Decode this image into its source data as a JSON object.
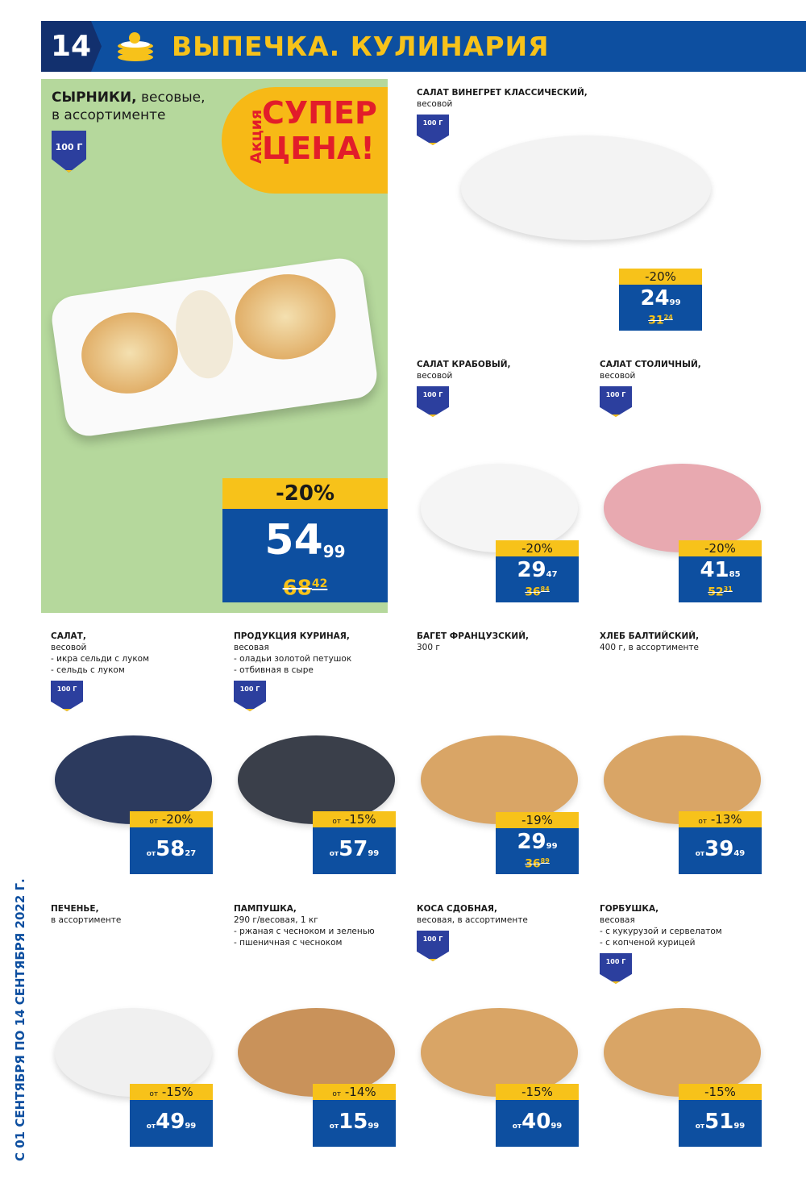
{
  "header": {
    "page_number": "14",
    "title": "ВЫПЕЧКА. КУЛИНАРИЯ",
    "icon": "pancake-stack-icon"
  },
  "colors": {
    "brand_blue": "#0d4fa0",
    "accent_yellow": "#f7c21a",
    "promo_red": "#e21d2a",
    "hero_bg": "#b5d89c"
  },
  "hero": {
    "name": "СЫРНИКИ,",
    "desc1": "весовые,",
    "desc2": "в ассортименте",
    "badge": "100 Г",
    "promo_small": "Акция",
    "promo_line1": "СУПЕР",
    "promo_line2": "ЦЕНА!",
    "discount": "-20%",
    "price": "54",
    "cents": "99",
    "old_price": "68",
    "old_cents": "42"
  },
  "products": [
    {
      "title": "САЛАТ ВИНЕГРЕТ КЛАССИЧЕСКИЙ,",
      "lines": [
        "весовой"
      ],
      "badge": "100 Г",
      "discount": "-20%",
      "price": "24",
      "cents": "99",
      "old_price": "31",
      "old_cents": "24"
    },
    {
      "title": "САЛАТ КРАБОВЫЙ,",
      "lines": [
        "весовой"
      ],
      "badge": "100 Г",
      "discount": "-20%",
      "price": "29",
      "cents": "47",
      "old_price": "36",
      "old_cents": "84"
    },
    {
      "title": "САЛАТ СТОЛИЧНЫЙ,",
      "lines": [
        "весовой"
      ],
      "badge": "100 Г",
      "discount": "-20%",
      "price": "41",
      "cents": "85",
      "old_price": "52",
      "old_cents": "31"
    },
    {
      "title": "САЛАТ,",
      "lines": [
        "весовой",
        "- икра сельди с луком",
        "- сельдь с луком"
      ],
      "badge": "100 Г",
      "from": "от",
      "discount": "-20%",
      "price": "58",
      "cents": "27"
    },
    {
      "title": "ПРОДУКЦИЯ КУРИНАЯ,",
      "lines": [
        "весовая",
        "- оладьи золотой петушок",
        "- отбивная в сыре"
      ],
      "badge": "100 Г",
      "from": "от",
      "discount": "-15%",
      "price": "57",
      "cents": "99"
    },
    {
      "title": "БАГЕТ ФРАНЦУЗСКИЙ,",
      "lines": [
        "300 г"
      ],
      "discount": "-19%",
      "price": "29",
      "cents": "99",
      "old_price": "36",
      "old_cents": "89"
    },
    {
      "title": "ХЛЕБ БАЛТИЙСКИЙ,",
      "lines": [
        "400 г, в ассортименте"
      ],
      "from": "от",
      "discount": "-13%",
      "price": "39",
      "cents": "49"
    },
    {
      "title": "ПЕЧЕНЬЕ,",
      "lines": [
        "в ассортименте"
      ],
      "from": "от",
      "discount": "-15%",
      "price": "49",
      "cents": "99"
    },
    {
      "title": "ПАМПУШКА,",
      "lines": [
        "290 г/весовая, 1 кг",
        "- ржаная с чесноком и зеленью",
        "- пшеничная с чесноком"
      ],
      "from": "от",
      "discount": "-14%",
      "price": "15",
      "cents": "99"
    },
    {
      "title": "КОСА СДОБНАЯ,",
      "lines": [
        "весовая, в ассортименте"
      ],
      "badge": "100 Г",
      "price_from": "от",
      "discount": "-15%",
      "price": "40",
      "cents": "99"
    },
    {
      "title": "ГОРБУШКА,",
      "lines": [
        "весовая",
        "- с кукурузой и сервелатом",
        "- с копченой курицей"
      ],
      "badge": "100 Г",
      "price_from": "от",
      "discount": "-15%",
      "price": "51",
      "cents": "99"
    }
  ],
  "validity": "С 01 СЕНТЯБРЯ ПО 14 СЕНТЯБРЯ 2022 Г."
}
